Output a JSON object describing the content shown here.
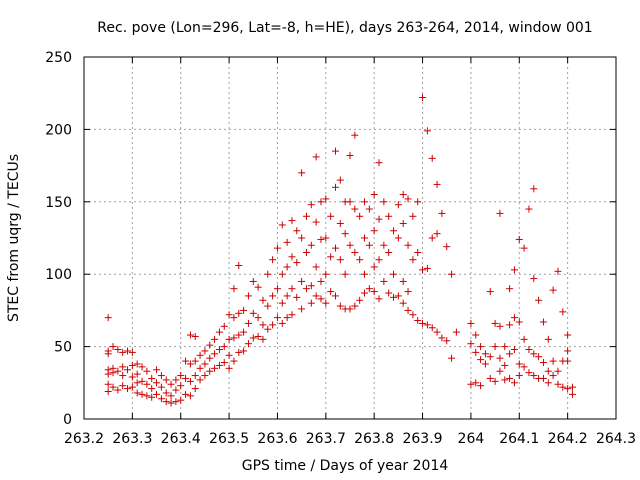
{
  "chart_data": {
    "type": "scatter",
    "title": "Rec. pove (Lon=296, Lat=-8, h=HE), days 263-264, 2014, window 001",
    "xlabel": "GPS time / Days of year 2014",
    "ylabel": "STEC from uqrg / TECUs",
    "xlim": [
      263.2,
      264.3
    ],
    "ylim": [
      0,
      250
    ],
    "x_ticks": [
      "263.2",
      "263.3",
      "263.4",
      "263.5",
      "263.6",
      "263.7",
      "263.8",
      "263.9",
      "264",
      "264.1",
      "264.2",
      "264.3"
    ],
    "y_ticks": [
      "0",
      "50",
      "100",
      "150",
      "200",
      "250"
    ],
    "grid": true,
    "marker": "+",
    "color": "#cc0000",
    "points": [
      [
        263.25,
        70
      ],
      [
        263.25,
        47
      ],
      [
        263.25,
        45
      ],
      [
        263.25,
        34
      ],
      [
        263.25,
        31
      ],
      [
        263.25,
        24
      ],
      [
        263.25,
        19
      ],
      [
        263.26,
        50
      ],
      [
        263.26,
        35
      ],
      [
        263.26,
        32
      ],
      [
        263.26,
        22
      ],
      [
        263.27,
        48
      ],
      [
        263.27,
        33
      ],
      [
        263.27,
        20
      ],
      [
        263.28,
        46
      ],
      [
        263.28,
        36
      ],
      [
        263.28,
        30
      ],
      [
        263.28,
        23
      ],
      [
        263.29,
        47
      ],
      [
        263.29,
        34
      ],
      [
        263.29,
        21
      ],
      [
        263.3,
        46
      ],
      [
        263.3,
        37
      ],
      [
        263.3,
        29
      ],
      [
        263.3,
        22
      ],
      [
        263.31,
        38
      ],
      [
        263.31,
        31
      ],
      [
        263.31,
        25
      ],
      [
        263.31,
        18
      ],
      [
        263.32,
        36
      ],
      [
        263.32,
        26
      ],
      [
        263.32,
        17
      ],
      [
        263.33,
        33
      ],
      [
        263.33,
        24
      ],
      [
        263.33,
        16
      ],
      [
        263.34,
        28
      ],
      [
        263.34,
        21
      ],
      [
        263.34,
        15
      ],
      [
        263.35,
        34
      ],
      [
        263.35,
        25
      ],
      [
        263.35,
        17
      ],
      [
        263.36,
        30
      ],
      [
        263.36,
        22
      ],
      [
        263.36,
        14
      ],
      [
        263.37,
        27
      ],
      [
        263.37,
        18
      ],
      [
        263.37,
        12
      ],
      [
        263.38,
        24
      ],
      [
        263.38,
        16
      ],
      [
        263.38,
        11
      ],
      [
        263.39,
        27
      ],
      [
        263.39,
        20
      ],
      [
        263.39,
        12
      ],
      [
        263.4,
        30
      ],
      [
        263.4,
        23
      ],
      [
        263.4,
        13
      ],
      [
        263.41,
        40
      ],
      [
        263.41,
        28
      ],
      [
        263.41,
        17
      ],
      [
        263.42,
        58
      ],
      [
        263.42,
        38
      ],
      [
        263.42,
        26
      ],
      [
        263.42,
        16
      ],
      [
        263.43,
        57
      ],
      [
        263.43,
        40
      ],
      [
        263.43,
        30
      ],
      [
        263.43,
        21
      ],
      [
        263.44,
        44
      ],
      [
        263.44,
        35
      ],
      [
        263.44,
        27
      ],
      [
        263.45,
        47
      ],
      [
        263.45,
        38
      ],
      [
        263.45,
        30
      ],
      [
        263.46,
        51
      ],
      [
        263.46,
        42
      ],
      [
        263.46,
        33
      ],
      [
        263.47,
        55
      ],
      [
        263.47,
        45
      ],
      [
        263.47,
        35
      ],
      [
        263.48,
        60
      ],
      [
        263.48,
        48
      ],
      [
        263.48,
        37
      ],
      [
        263.49,
        64
      ],
      [
        263.49,
        50
      ],
      [
        263.49,
        39
      ],
      [
        263.5,
        72
      ],
      [
        263.5,
        55
      ],
      [
        263.5,
        44
      ],
      [
        263.5,
        35
      ],
      [
        263.51,
        90
      ],
      [
        263.51,
        70
      ],
      [
        263.51,
        56
      ],
      [
        263.51,
        40
      ],
      [
        263.52,
        106
      ],
      [
        263.52,
        73
      ],
      [
        263.52,
        58
      ],
      [
        263.52,
        46
      ],
      [
        263.53,
        75
      ],
      [
        263.53,
        60
      ],
      [
        263.53,
        47
      ],
      [
        263.54,
        85
      ],
      [
        263.54,
        66
      ],
      [
        263.54,
        52
      ],
      [
        263.55,
        95
      ],
      [
        263.55,
        73
      ],
      [
        263.55,
        56
      ],
      [
        263.56,
        91
      ],
      [
        263.56,
        70
      ],
      [
        263.56,
        57
      ],
      [
        263.57,
        82
      ],
      [
        263.57,
        65
      ],
      [
        263.57,
        55
      ],
      [
        263.58,
        100
      ],
      [
        263.58,
        78
      ],
      [
        263.58,
        62
      ],
      [
        263.59,
        110
      ],
      [
        263.59,
        85
      ],
      [
        263.59,
        65
      ],
      [
        263.6,
        118
      ],
      [
        263.6,
        90
      ],
      [
        263.6,
        70
      ],
      [
        263.61,
        134
      ],
      [
        263.61,
        100
      ],
      [
        263.61,
        80
      ],
      [
        263.61,
        66
      ],
      [
        263.62,
        122
      ],
      [
        263.62,
        105
      ],
      [
        263.62,
        85
      ],
      [
        263.62,
        70
      ],
      [
        263.63,
        137
      ],
      [
        263.63,
        112
      ],
      [
        263.63,
        90
      ],
      [
        263.63,
        72
      ],
      [
        263.64,
        130
      ],
      [
        263.64,
        108
      ],
      [
        263.64,
        84
      ],
      [
        263.65,
        170
      ],
      [
        263.65,
        125
      ],
      [
        263.65,
        95
      ],
      [
        263.65,
        76
      ],
      [
        263.66,
        140
      ],
      [
        263.66,
        115
      ],
      [
        263.66,
        90
      ],
      [
        263.67,
        148
      ],
      [
        263.67,
        120
      ],
      [
        263.67,
        92
      ],
      [
        263.67,
        80
      ],
      [
        263.68,
        181
      ],
      [
        263.68,
        136
      ],
      [
        263.68,
        105
      ],
      [
        263.68,
        85
      ],
      [
        263.69,
        150
      ],
      [
        263.69,
        124
      ],
      [
        263.69,
        95
      ],
      [
        263.69,
        83
      ],
      [
        263.7,
        152
      ],
      [
        263.7,
        125
      ],
      [
        263.7,
        100
      ],
      [
        263.7,
        80
      ],
      [
        263.71,
        140
      ],
      [
        263.71,
        112
      ],
      [
        263.71,
        88
      ],
      [
        263.72,
        185
      ],
      [
        263.72,
        160
      ],
      [
        263.72,
        118
      ],
      [
        263.72,
        85
      ],
      [
        263.73,
        165
      ],
      [
        263.73,
        135
      ],
      [
        263.73,
        110
      ],
      [
        263.73,
        78
      ],
      [
        263.74,
        150
      ],
      [
        263.74,
        128
      ],
      [
        263.74,
        100
      ],
      [
        263.74,
        76
      ],
      [
        263.75,
        182
      ],
      [
        263.75,
        150
      ],
      [
        263.75,
        120
      ],
      [
        263.75,
        76
      ],
      [
        263.76,
        196
      ],
      [
        263.76,
        145
      ],
      [
        263.76,
        115
      ],
      [
        263.76,
        78
      ],
      [
        263.77,
        140
      ],
      [
        263.77,
        110
      ],
      [
        263.77,
        82
      ],
      [
        263.78,
        150
      ],
      [
        263.78,
        125
      ],
      [
        263.78,
        100
      ],
      [
        263.78,
        87
      ],
      [
        263.79,
        145
      ],
      [
        263.79,
        120
      ],
      [
        263.79,
        90
      ],
      [
        263.8,
        155
      ],
      [
        263.8,
        130
      ],
      [
        263.8,
        105
      ],
      [
        263.8,
        88
      ],
      [
        263.81,
        177
      ],
      [
        263.81,
        138
      ],
      [
        263.81,
        110
      ],
      [
        263.81,
        83
      ],
      [
        263.82,
        150
      ],
      [
        263.82,
        120
      ],
      [
        263.82,
        95
      ],
      [
        263.83,
        140
      ],
      [
        263.83,
        115
      ],
      [
        263.83,
        87
      ],
      [
        263.84,
        130
      ],
      [
        263.84,
        100
      ],
      [
        263.84,
        84
      ],
      [
        263.85,
        148
      ],
      [
        263.85,
        125
      ],
      [
        263.85,
        85
      ],
      [
        263.86,
        155
      ],
      [
        263.86,
        135
      ],
      [
        263.86,
        95
      ],
      [
        263.86,
        80
      ],
      [
        263.87,
        152
      ],
      [
        263.87,
        120
      ],
      [
        263.87,
        88
      ],
      [
        263.87,
        75
      ],
      [
        263.88,
        140
      ],
      [
        263.88,
        110
      ],
      [
        263.88,
        72
      ],
      [
        263.89,
        150
      ],
      [
        263.89,
        115
      ],
      [
        263.89,
        68
      ],
      [
        263.9,
        222
      ],
      [
        263.9,
        103
      ],
      [
        263.9,
        66
      ],
      [
        263.91,
        199
      ],
      [
        263.91,
        104
      ],
      [
        263.91,
        65
      ],
      [
        263.92,
        180
      ],
      [
        263.92,
        125
      ],
      [
        263.92,
        63
      ],
      [
        263.93,
        162
      ],
      [
        263.93,
        128
      ],
      [
        263.93,
        60
      ],
      [
        263.94,
        142
      ],
      [
        263.94,
        56
      ],
      [
        263.95,
        119
      ],
      [
        263.95,
        54
      ],
      [
        263.96,
        100
      ],
      [
        263.96,
        42
      ],
      [
        263.97,
        60
      ],
      [
        264.0,
        66
      ],
      [
        264.0,
        52
      ],
      [
        264.0,
        24
      ],
      [
        264.01,
        58
      ],
      [
        264.01,
        46
      ],
      [
        264.01,
        25
      ],
      [
        264.02,
        50
      ],
      [
        264.02,
        41
      ],
      [
        264.02,
        23
      ],
      [
        264.03,
        45
      ],
      [
        264.03,
        38
      ],
      [
        264.04,
        88
      ],
      [
        264.04,
        43
      ],
      [
        264.04,
        28
      ],
      [
        264.05,
        66
      ],
      [
        264.05,
        50
      ],
      [
        264.05,
        26
      ],
      [
        264.06,
        142
      ],
      [
        264.06,
        64
      ],
      [
        264.06,
        42
      ],
      [
        264.06,
        33
      ],
      [
        264.07,
        50
      ],
      [
        264.07,
        37
      ],
      [
        264.07,
        27
      ],
      [
        264.08,
        90
      ],
      [
        264.08,
        65
      ],
      [
        264.08,
        45
      ],
      [
        264.08,
        28
      ],
      [
        264.09,
        103
      ],
      [
        264.09,
        70
      ],
      [
        264.09,
        48
      ],
      [
        264.09,
        25
      ],
      [
        264.1,
        124
      ],
      [
        264.1,
        67
      ],
      [
        264.1,
        38
      ],
      [
        264.1,
        30
      ],
      [
        264.11,
        118
      ],
      [
        264.11,
        55
      ],
      [
        264.11,
        36
      ],
      [
        264.12,
        145
      ],
      [
        264.12,
        48
      ],
      [
        264.12,
        32
      ],
      [
        264.13,
        159
      ],
      [
        264.13,
        97
      ],
      [
        264.13,
        45
      ],
      [
        264.13,
        30
      ],
      [
        264.14,
        82
      ],
      [
        264.14,
        43
      ],
      [
        264.14,
        28
      ],
      [
        264.15,
        67
      ],
      [
        264.15,
        39
      ],
      [
        264.15,
        28
      ],
      [
        264.16,
        55
      ],
      [
        264.16,
        33
      ],
      [
        264.16,
        25
      ],
      [
        264.17,
        89
      ],
      [
        264.17,
        40
      ],
      [
        264.17,
        30
      ],
      [
        264.18,
        102
      ],
      [
        264.18,
        33
      ],
      [
        264.18,
        24
      ],
      [
        264.19,
        74
      ],
      [
        264.19,
        40
      ],
      [
        264.19,
        22
      ],
      [
        264.2,
        58
      ],
      [
        264.2,
        47
      ],
      [
        264.2,
        40
      ],
      [
        264.2,
        21
      ],
      [
        264.21,
        22
      ],
      [
        264.21,
        17
      ]
    ]
  }
}
